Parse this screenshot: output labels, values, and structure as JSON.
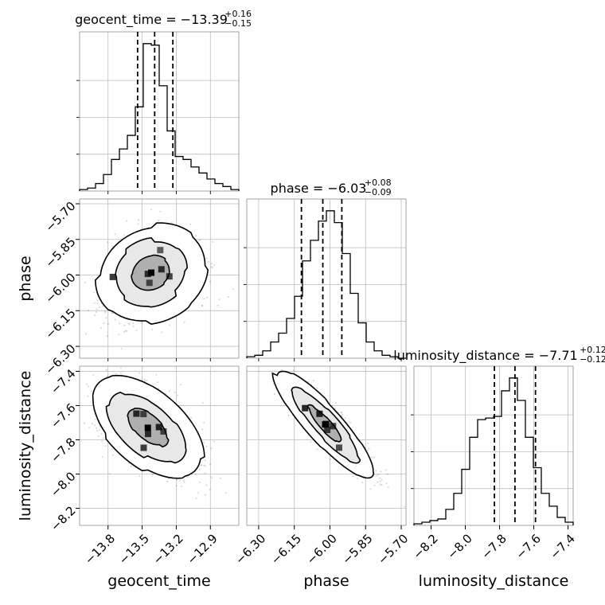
{
  "chart_data": {
    "type": "corner",
    "parameters": [
      "geocent_time",
      "phase",
      "luminosity_distance"
    ],
    "axis_labels": {
      "geocent_time": "geocent_time",
      "phase": "phase",
      "luminosity_distance": "luminosity_distance"
    },
    "ranges": {
      "geocent_time": [
        -14.05,
        -12.65
      ],
      "phase": [
        -6.35,
        -5.68
      ],
      "luminosity_distance": [
        -8.3,
        -7.37
      ]
    },
    "ticks": {
      "geocent_time": [
        -13.8,
        -13.5,
        -13.2,
        -12.9
      ],
      "phase": [
        -6.3,
        -6.15,
        -6.0,
        -5.85,
        -5.7
      ],
      "luminosity_distance": [
        -8.2,
        -8.0,
        -7.8,
        -7.6,
        -7.4
      ]
    },
    "tick_labels": {
      "geocent_time": [
        "−13.8",
        "−13.5",
        "−13.2",
        "−12.9"
      ],
      "phase": [
        "−6.30",
        "−6.15",
        "−6.00",
        "−5.85",
        "−5.70"
      ],
      "luminosity_distance": [
        "−8.2",
        "−8.0",
        "−7.8",
        "−7.6",
        "−7.4"
      ]
    },
    "titles": [
      {
        "param": "geocent_time",
        "text": "geocent_time = −13.39",
        "plus": "+0.16",
        "minus": "−0.15"
      },
      {
        "param": "phase",
        "text": "phase = −6.03",
        "plus": "+0.08",
        "minus": "−0.09"
      },
      {
        "param": "luminosity_distance",
        "text": "luminosity_distance = −7.71",
        "plus": "+0.12",
        "minus": "−0.12"
      }
    ],
    "quantiles": {
      "geocent_time": [
        -13.54,
        -13.39,
        -13.23
      ],
      "phase": [
        -6.12,
        -6.03,
        -5.95
      ],
      "luminosity_distance": [
        -7.83,
        -7.71,
        -7.59
      ]
    },
    "histograms": {
      "geocent_time": {
        "edges": [
          -14.05,
          -13.98,
          -13.91,
          -13.84,
          -13.77,
          -13.7,
          -13.63,
          -13.56,
          -13.49,
          -13.42,
          -13.35,
          -13.28,
          -13.21,
          -13.14,
          -13.07,
          -13.0,
          -12.93,
          -12.86,
          -12.79,
          -12.72,
          -12.65
        ],
        "counts": [
          1,
          2,
          5,
          11,
          21,
          28,
          37,
          56,
          98,
          97,
          70,
          40,
          23,
          21,
          16,
          12,
          8,
          5,
          3,
          1
        ]
      },
      "phase": {
        "edges": [
          -6.35,
          -6.3165,
          -6.283,
          -6.2495,
          -6.216,
          -6.1825,
          -6.149,
          -6.1155,
          -6.082,
          -6.0485,
          -6.015,
          -5.9815,
          -5.948,
          -5.9145,
          -5.881,
          -5.8475,
          -5.814,
          -5.7805,
          -5.747,
          -5.7135,
          -5.68
        ],
        "counts": [
          1,
          2,
          5,
          11,
          17,
          27,
          42,
          66,
          80,
          93,
          100,
          92,
          71,
          44,
          24,
          11,
          5,
          2,
          1,
          0
        ]
      },
      "luminosity_distance": {
        "edges": [
          -8.3,
          -8.2535,
          -8.207,
          -8.1605,
          -8.114,
          -8.0675,
          -8.021,
          -7.9745,
          -7.928,
          -7.8815,
          -7.835,
          -7.7885,
          -7.742,
          -7.6955,
          -7.649,
          -7.6025,
          -7.556,
          -7.5095,
          -7.463,
          -7.4165,
          -7.37
        ],
        "counts": [
          1,
          2,
          3,
          4,
          10,
          20,
          35,
          55,
          66,
          67,
          68,
          84,
          92,
          78,
          55,
          36,
          20,
          12,
          5,
          2
        ]
      }
    },
    "contours_2d": [
      {
        "x": "geocent_time",
        "y": "phase",
        "center": [
          -13.42,
          -5.99
        ],
        "shape": "roughly elliptical, elongated toward low geocent_time at phase about -6.1"
      },
      {
        "x": "geocent_time",
        "y": "luminosity_distance",
        "center": [
          -13.45,
          -7.73
        ],
        "shape": "anti-correlated, elongated toward high distance at low geocent_time"
      },
      {
        "x": "phase",
        "y": "luminosity_distance",
        "center": [
          -6.02,
          -7.71
        ],
        "shape": "strongly anti-correlated diagonal band"
      }
    ],
    "grid": true
  }
}
